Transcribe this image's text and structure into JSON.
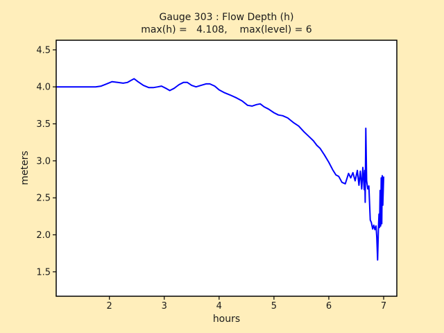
{
  "colors": {
    "figure_bg": "#ffeebb",
    "plot_bg": "#ffffff",
    "line": "#0000ff",
    "text": "#1a1a1a",
    "axis": "#000000"
  },
  "chart_data": {
    "type": "line",
    "title": "Gauge 303 : Flow Depth (h)",
    "subtitle": "max(h) =   4.108,    max(level) = 6",
    "xlabel": "hours",
    "ylabel": "meters",
    "xlim": [
      1.03,
      7.24
    ],
    "ylim": [
      1.17,
      4.63
    ],
    "xticks": [
      2,
      3,
      4,
      5,
      6,
      7
    ],
    "yticks": [
      4.5,
      4.0,
      3.5,
      3.0,
      2.5,
      2.0,
      1.5
    ],
    "grid": false,
    "legend_position": "none",
    "annotations": {
      "max_h": 4.108,
      "max_level": 6
    },
    "series": [
      {
        "name": "flow depth h",
        "x": [
          1.03,
          1.2,
          1.4,
          1.6,
          1.75,
          1.85,
          1.95,
          2.05,
          2.15,
          2.25,
          2.33,
          2.4,
          2.45,
          2.52,
          2.62,
          2.72,
          2.8,
          2.88,
          2.95,
          3.03,
          3.1,
          3.18,
          3.27,
          3.35,
          3.42,
          3.5,
          3.58,
          3.67,
          3.76,
          3.83,
          3.92,
          4.0,
          4.1,
          4.2,
          4.32,
          4.42,
          4.52,
          4.6,
          4.68,
          4.75,
          4.82,
          4.9,
          5.0,
          5.08,
          5.16,
          5.25,
          5.35,
          5.45,
          5.55,
          5.65,
          5.72,
          5.78,
          5.84,
          5.92,
          6.0,
          6.07,
          6.13,
          6.18,
          6.24,
          6.3,
          6.36,
          6.4,
          6.44,
          6.48,
          6.52,
          6.55,
          6.575,
          6.6,
          6.62,
          6.645,
          6.655,
          6.663,
          6.675,
          6.69,
          6.71,
          6.73,
          6.755,
          6.775,
          6.8,
          6.82,
          6.84,
          6.86,
          6.875,
          6.89,
          6.905,
          6.915,
          6.925,
          6.935,
          6.945,
          6.955,
          6.965,
          6.975,
          6.985,
          7.0
        ],
        "y": [
          4.0,
          4.0,
          4.0,
          4.0,
          4.0,
          4.01,
          4.04,
          4.07,
          4.06,
          4.05,
          4.06,
          4.09,
          4.11,
          4.07,
          4.02,
          3.99,
          3.99,
          4.0,
          4.01,
          3.98,
          3.95,
          3.98,
          4.03,
          4.06,
          4.06,
          4.02,
          4.0,
          4.02,
          4.04,
          4.04,
          4.01,
          3.96,
          3.92,
          3.89,
          3.85,
          3.81,
          3.75,
          3.74,
          3.76,
          3.77,
          3.73,
          3.7,
          3.65,
          3.62,
          3.61,
          3.58,
          3.52,
          3.47,
          3.39,
          3.32,
          3.27,
          3.21,
          3.17,
          3.08,
          2.98,
          2.88,
          2.81,
          2.79,
          2.71,
          2.69,
          2.83,
          2.77,
          2.84,
          2.73,
          2.87,
          2.67,
          2.86,
          2.62,
          2.91,
          2.61,
          2.87,
          2.44,
          3.44,
          2.73,
          2.62,
          2.66,
          2.2,
          2.17,
          2.08,
          2.13,
          2.07,
          2.12,
          1.97,
          1.66,
          2.1,
          2.28,
          2.1,
          2.6,
          2.12,
          2.77,
          2.15,
          2.8,
          2.4,
          2.78
        ]
      }
    ]
  }
}
